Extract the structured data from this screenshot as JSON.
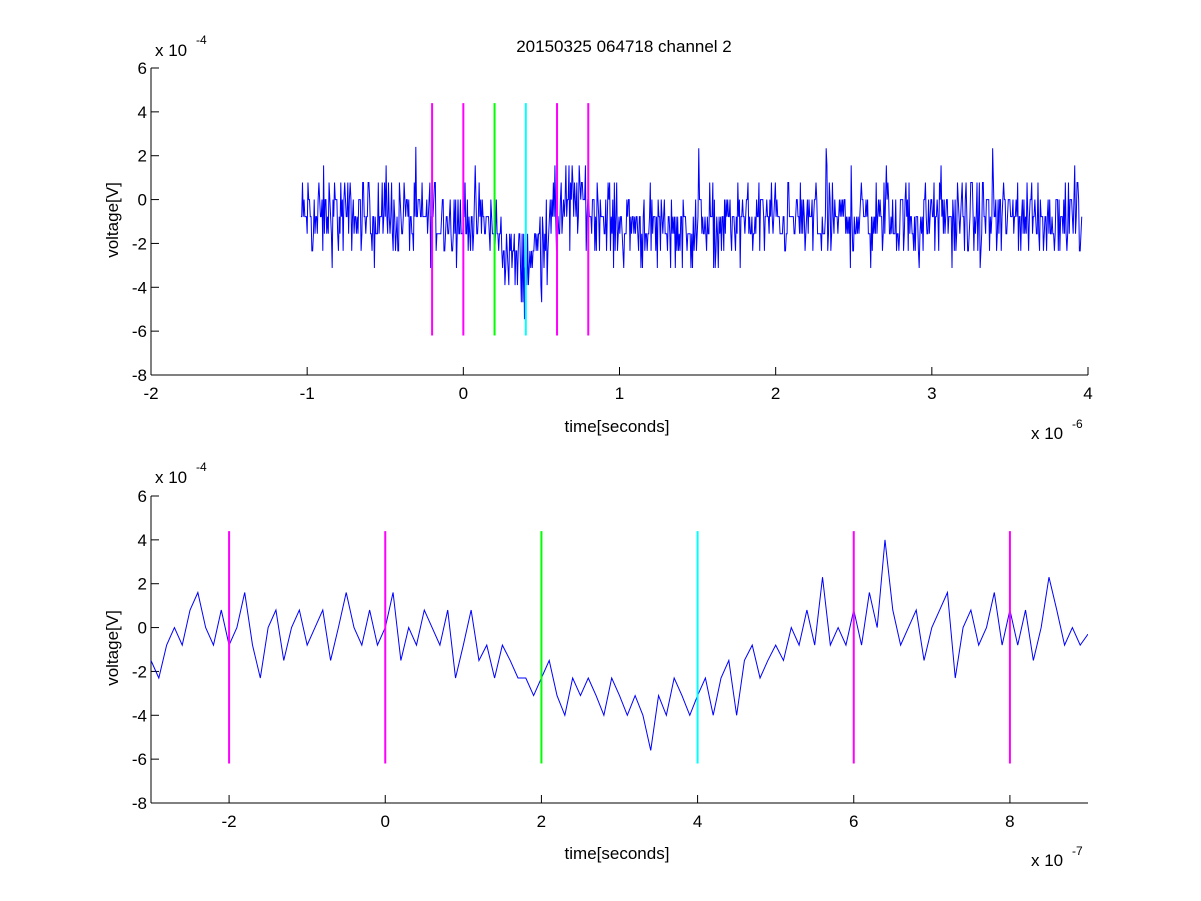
{
  "figure_title": "20150325 064718 channel 2",
  "chart_data": [
    {
      "type": "line",
      "title": "20150325 064718 channel 2",
      "xlabel": "time[seconds]",
      "ylabel": "voltage[V]",
      "x_exponent_label": "x 10",
      "x_exponent_power": "-6",
      "y_exponent_label": "x 10",
      "y_exponent_power": "-4",
      "xlim": [
        -2,
        4
      ],
      "ylim": [
        -8,
        6
      ],
      "xticks": [
        -2,
        -1,
        0,
        1,
        2,
        3,
        4
      ],
      "xtick_labels": [
        "-2",
        "-1",
        "0",
        "1",
        "2",
        "3",
        "4"
      ],
      "yticks": [
        -8,
        -6,
        -4,
        -2,
        0,
        2,
        4,
        6
      ],
      "ytick_labels": [
        "-8",
        "-6",
        "-4",
        "-2",
        "0",
        "2",
        "4",
        "6"
      ],
      "grid": false,
      "series": [
        {
          "color": "#0000ff",
          "x_start": -1.04,
          "x_end": 3.96,
          "points": 1000,
          "quantization": 0.78,
          "baseline_profile": {
            "x": [
              -1.04,
              -0.2,
              0.15,
              0.3,
              0.4,
              0.5,
              0.7,
              1.0,
              1.4,
              2.0,
              3.0,
              3.96
            ],
            "y": [
              -0.8,
              -0.7,
              -1.0,
              -2.5,
              -3.2,
              -1.5,
              0.0,
              -1.1,
              -1.3,
              -0.9,
              -0.9,
              -0.8
            ]
          },
          "noise_amplitude": 1.1
        }
      ],
      "markers": [
        {
          "x": -0.2,
          "color": "#ff00ff",
          "y_range": [
            -6.2,
            4.4
          ]
        },
        {
          "x": 0.0,
          "color": "#ff00ff",
          "y_range": [
            -6.2,
            4.4
          ]
        },
        {
          "x": 0.2,
          "color": "#00ff00",
          "y_range": [
            -6.2,
            4.4
          ]
        },
        {
          "x": 0.4,
          "color": "#00ffff",
          "y_range": [
            -6.2,
            4.4
          ]
        },
        {
          "x": 0.6,
          "color": "#ff00ff",
          "y_range": [
            -6.2,
            4.4
          ]
        },
        {
          "x": 0.8,
          "color": "#ff00ff",
          "y_range": [
            -6.2,
            4.4
          ]
        }
      ]
    },
    {
      "type": "line",
      "title": "",
      "xlabel": "time[seconds]",
      "ylabel": "voltage[V]",
      "x_exponent_label": "x 10",
      "x_exponent_power": "-7",
      "y_exponent_label": "x 10",
      "y_exponent_power": "-4",
      "xlim": [
        -3,
        9
      ],
      "ylim": [
        -8,
        6
      ],
      "xticks": [
        -2,
        0,
        2,
        4,
        6,
        8
      ],
      "xtick_labels": [
        "-2",
        "0",
        "2",
        "4",
        "6",
        "8"
      ],
      "yticks": [
        -8,
        -6,
        -4,
        -2,
        0,
        2,
        4,
        6
      ],
      "ytick_labels": [
        "-8",
        "-6",
        "-4",
        "-2",
        "0",
        "2",
        "4",
        "6"
      ],
      "grid": false,
      "series": [
        {
          "color": "#0000ff",
          "x": [
            -3.0,
            -2.9,
            -2.8,
            -2.7,
            -2.6,
            -2.5,
            -2.4,
            -2.3,
            -2.2,
            -2.1,
            -2.0,
            -1.9,
            -1.8,
            -1.7,
            -1.6,
            -1.5,
            -1.4,
            -1.3,
            -1.2,
            -1.1,
            -1.0,
            -0.9,
            -0.8,
            -0.7,
            -0.6,
            -0.5,
            -0.4,
            -0.3,
            -0.2,
            -0.1,
            0.0,
            0.1,
            0.2,
            0.3,
            0.4,
            0.5,
            0.6,
            0.7,
            0.8,
            0.9,
            1.0,
            1.1,
            1.2,
            1.3,
            1.4,
            1.5,
            1.6,
            1.7,
            1.8,
            1.9,
            2.0,
            2.1,
            2.2,
            2.3,
            2.4,
            2.5,
            2.6,
            2.7,
            2.8,
            2.9,
            3.0,
            3.1,
            3.2,
            3.3,
            3.4,
            3.5,
            3.6,
            3.7,
            3.8,
            3.9,
            4.0,
            4.1,
            4.2,
            4.3,
            4.4,
            4.5,
            4.6,
            4.7,
            4.8,
            4.9,
            5.0,
            5.1,
            5.2,
            5.3,
            5.4,
            5.5,
            5.6,
            5.7,
            5.8,
            5.9,
            6.0,
            6.1,
            6.2,
            6.3,
            6.4,
            6.5,
            6.6,
            6.7,
            6.8,
            6.9,
            7.0,
            7.1,
            7.2,
            7.3,
            7.4,
            7.5,
            7.6,
            7.7,
            7.8,
            7.9,
            8.0,
            8.1,
            8.2,
            8.3,
            8.4,
            8.5,
            8.6,
            8.7,
            8.8,
            8.9,
            9.0
          ],
          "y": [
            -1.5,
            -2.3,
            -0.8,
            0.0,
            -0.8,
            0.8,
            1.6,
            0.0,
            -0.8,
            0.8,
            -0.8,
            0.0,
            1.6,
            -0.8,
            -2.3,
            0.0,
            0.8,
            -1.5,
            0.0,
            0.8,
            -0.8,
            0.0,
            0.8,
            -1.5,
            0.0,
            1.6,
            0.0,
            -0.8,
            0.8,
            -0.8,
            0.0,
            1.6,
            -1.5,
            0.0,
            -0.8,
            0.8,
            0.0,
            -0.8,
            0.8,
            -2.3,
            -0.8,
            0.8,
            -1.5,
            -0.8,
            -2.3,
            -0.8,
            -1.5,
            -2.3,
            -2.3,
            -3.1,
            -2.3,
            -1.5,
            -3.1,
            -4.0,
            -2.3,
            -3.1,
            -2.3,
            -3.1,
            -4.0,
            -2.3,
            -3.1,
            -4.0,
            -3.1,
            -4.0,
            -5.6,
            -3.1,
            -4.0,
            -2.3,
            -3.1,
            -4.0,
            -3.1,
            -2.3,
            -4.0,
            -2.3,
            -1.5,
            -4.0,
            -1.5,
            -0.8,
            -2.3,
            -1.5,
            -0.8,
            -1.5,
            0.0,
            -0.8,
            0.8,
            -0.8,
            2.3,
            -0.8,
            0.0,
            -0.8,
            0.8,
            -0.8,
            1.6,
            0.0,
            4.0,
            0.8,
            -0.8,
            0.0,
            0.8,
            -1.5,
            0.0,
            0.8,
            1.6,
            -2.3,
            0.0,
            0.8,
            -0.8,
            0.0,
            1.6,
            -0.8,
            0.8,
            -0.8,
            0.8,
            -1.5,
            0.0,
            2.3,
            0.8,
            -0.8,
            0.0,
            -0.8,
            -0.3
          ]
        }
      ],
      "markers": [
        {
          "x": -2,
          "color": "#ff00ff",
          "y_range": [
            -6.2,
            4.4
          ]
        },
        {
          "x": 0,
          "color": "#ff00ff",
          "y_range": [
            -6.2,
            4.4
          ]
        },
        {
          "x": 2,
          "color": "#00ff00",
          "y_range": [
            -6.2,
            4.4
          ]
        },
        {
          "x": 4,
          "color": "#00ffff",
          "y_range": [
            -6.2,
            4.4
          ]
        },
        {
          "x": 6,
          "color": "#ff00ff",
          "y_range": [
            -6.2,
            4.4
          ]
        },
        {
          "x": 8,
          "color": "#ff00ff",
          "y_range": [
            -6.2,
            4.4
          ]
        }
      ]
    }
  ]
}
